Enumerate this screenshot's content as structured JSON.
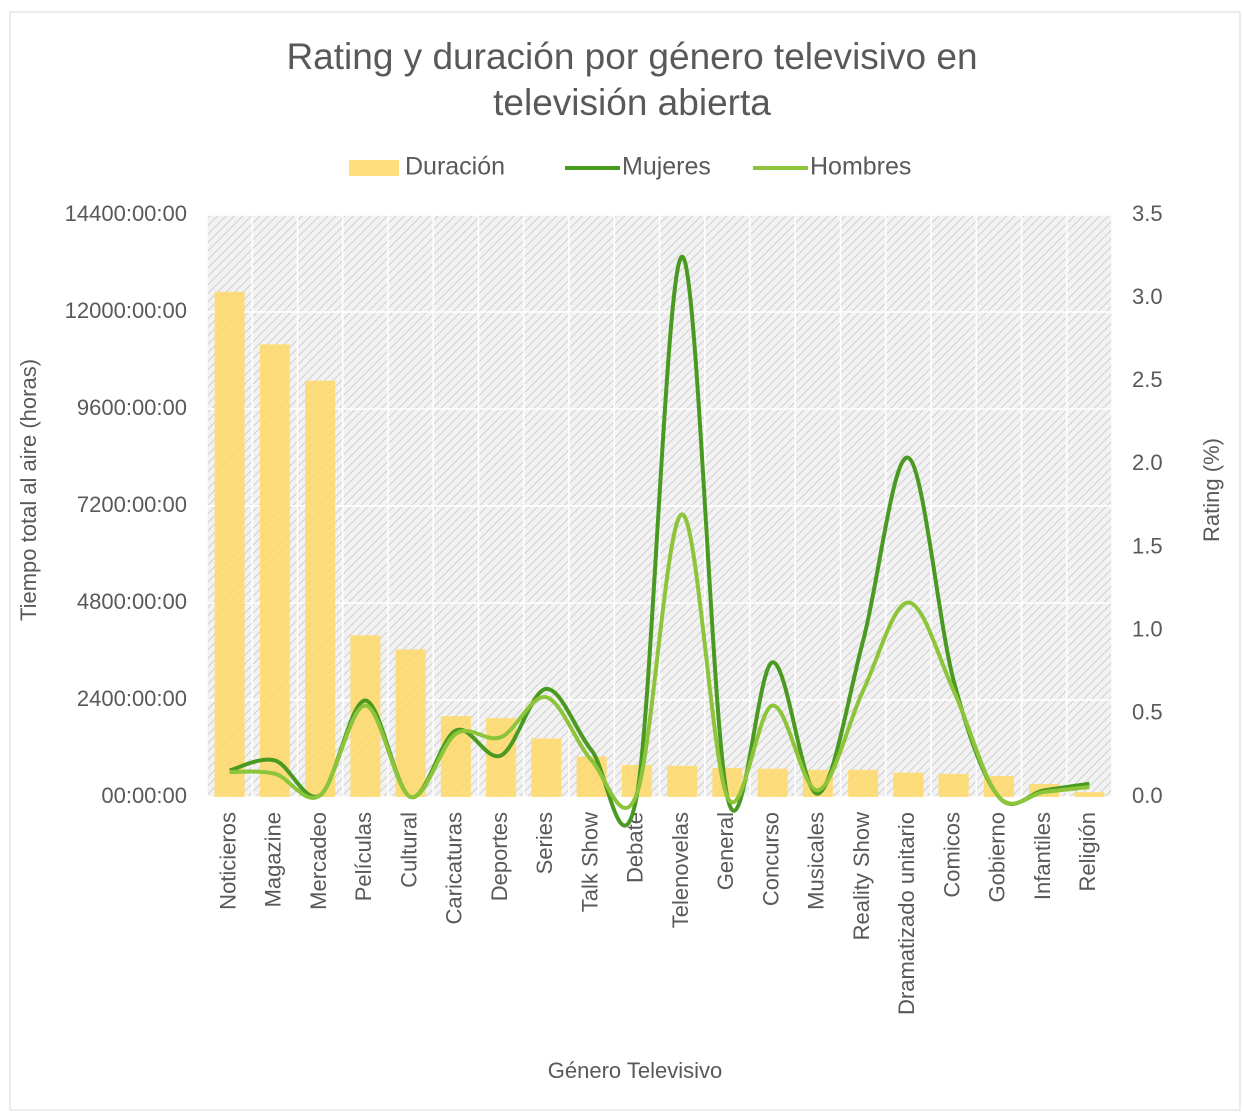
{
  "chart_data": {
    "type": "bar_line",
    "title": "Rating y duración por género televisivo en televisión abierta",
    "x_label": "Género Televisivo",
    "y_label": "Tiempo total al aire (horas)",
    "y2_label": "Rating (%)",
    "legend": "top",
    "categories": [
      "Noticieros",
      "Magazine",
      "Mercadeo",
      "Películas",
      "Cultural",
      "Caricaturas",
      "Deportes",
      "Series",
      "Talk Show",
      "Debate",
      "Telenovelas",
      "General",
      "Concurso",
      "Musicales",
      "Reality Show",
      "Dramatizado unitario",
      "Comicos",
      "Gobierno",
      "Infantiles",
      "Religión"
    ],
    "series": [
      {
        "name": "Duración",
        "type": "bar",
        "color": "#ffd966",
        "values": [
          12500,
          11200,
          10300,
          4000,
          3650,
          2000,
          1950,
          1450,
          1000,
          790,
          770,
          720,
          700,
          670,
          670,
          600,
          570,
          520,
          320,
          120
        ]
      },
      {
        "name": "Mujeres",
        "type": "line",
        "axis": "y2",
        "color": "#4a9a22",
        "values": [
          0.16,
          0.22,
          0.01,
          0.58,
          0.0,
          0.4,
          0.25,
          0.65,
          0.28,
          0.01,
          3.25,
          0.0,
          0.81,
          0.02,
          0.94,
          2.04,
          0.7,
          0.0,
          0.04,
          0.08
        ]
      },
      {
        "name": "Hombres",
        "type": "line",
        "axis": "y2",
        "color": "#8cc43a",
        "values": [
          0.15,
          0.14,
          0.01,
          0.55,
          0.0,
          0.38,
          0.36,
          0.6,
          0.22,
          0.02,
          1.7,
          0.0,
          0.55,
          0.04,
          0.64,
          1.17,
          0.64,
          0.0,
          0.03,
          0.06
        ]
      }
    ],
    "ylim": [
      0,
      14400
    ],
    "yticks": [
      {
        "value": 0,
        "label": "00:00:00"
      },
      {
        "value": 2400,
        "label": "2400:00:00"
      },
      {
        "value": 4800,
        "label": "4800:00:00"
      },
      {
        "value": 7200,
        "label": "7200:00:00"
      },
      {
        "value": 9600,
        "label": "9600:00:00"
      },
      {
        "value": 12000,
        "label": "12000:00:00"
      },
      {
        "value": 14400,
        "label": "14400:00:00"
      }
    ],
    "y2lim": [
      0,
      3.5
    ],
    "y2ticks": [
      {
        "value": 0,
        "label": "0.0"
      },
      0.5,
      {
        "value": 1,
        "label": "1.0"
      },
      1.5,
      {
        "value": 2,
        "label": "2.0"
      },
      2.5,
      {
        "value": 3,
        "label": "3.0"
      },
      3.5
    ],
    "grid": true
  }
}
